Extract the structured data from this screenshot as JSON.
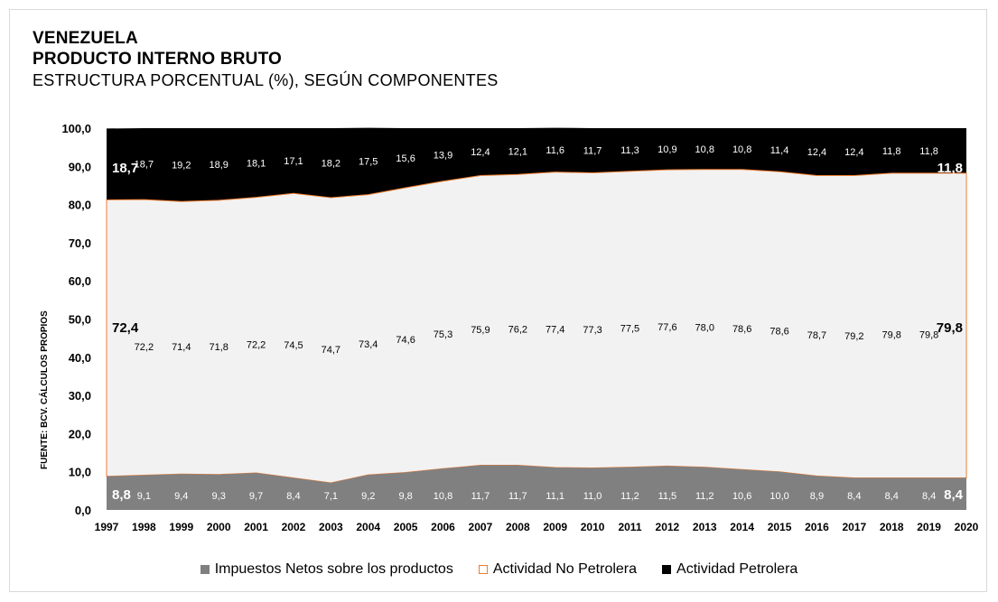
{
  "header": {
    "title_line1": "VENEZUELA",
    "title_line2": "PRODUCTO INTERNO BRUTO",
    "subtitle": "ESTRUCTURA PORCENTUAL (%), SEGÚN COMPONENTES"
  },
  "source_note": "FUENTE: BCV. CÁLCULOS PROPIOS",
  "colors": {
    "impuestos": "#808080",
    "no_petrolera": "#f2f2f2",
    "no_petrolera_border": "#ed7d31",
    "petrolera": "#000000"
  },
  "chart_data": {
    "type": "area",
    "stacked": true,
    "x": [
      "1997",
      "1998",
      "1999",
      "2000",
      "2001",
      "2002",
      "2003",
      "2004",
      "2005",
      "2006",
      "2007",
      "2008",
      "2009",
      "2010",
      "2011",
      "2012",
      "2013",
      "2014",
      "2015",
      "2016",
      "2017",
      "2018",
      "2019",
      "2020"
    ],
    "series": [
      {
        "name": "Impuestos Netos sobre los productos",
        "values": [
          8.8,
          9.1,
          9.4,
          9.3,
          9.7,
          8.4,
          7.1,
          9.2,
          9.8,
          10.8,
          11.7,
          11.7,
          11.1,
          11.0,
          11.2,
          11.5,
          11.2,
          10.6,
          10.0,
          8.9,
          8.4,
          8.4,
          8.4,
          8.4
        ]
      },
      {
        "name": "Actividad No Petrolera",
        "values": [
          72.4,
          72.2,
          71.4,
          71.8,
          72.2,
          74.5,
          74.7,
          73.4,
          74.6,
          75.3,
          75.9,
          76.2,
          77.4,
          77.3,
          77.5,
          77.6,
          78.0,
          78.6,
          78.6,
          78.7,
          79.2,
          79.8,
          79.8,
          79.8
        ]
      },
      {
        "name": "Actividad Petrolera",
        "values": [
          18.7,
          18.7,
          19.2,
          18.9,
          18.1,
          17.1,
          18.2,
          17.5,
          15.6,
          13.9,
          12.4,
          12.1,
          11.6,
          11.7,
          11.3,
          10.9,
          10.8,
          10.8,
          11.4,
          12.4,
          12.4,
          11.8,
          11.8,
          11.8
        ]
      }
    ],
    "y_ticks": [
      "0,0",
      "10,0",
      "20,0",
      "30,0",
      "40,0",
      "50,0",
      "60,0",
      "70,0",
      "80,0",
      "90,0",
      "100,0"
    ],
    "ylim": [
      0,
      100
    ],
    "grid": false,
    "legend_position": "bottom"
  }
}
